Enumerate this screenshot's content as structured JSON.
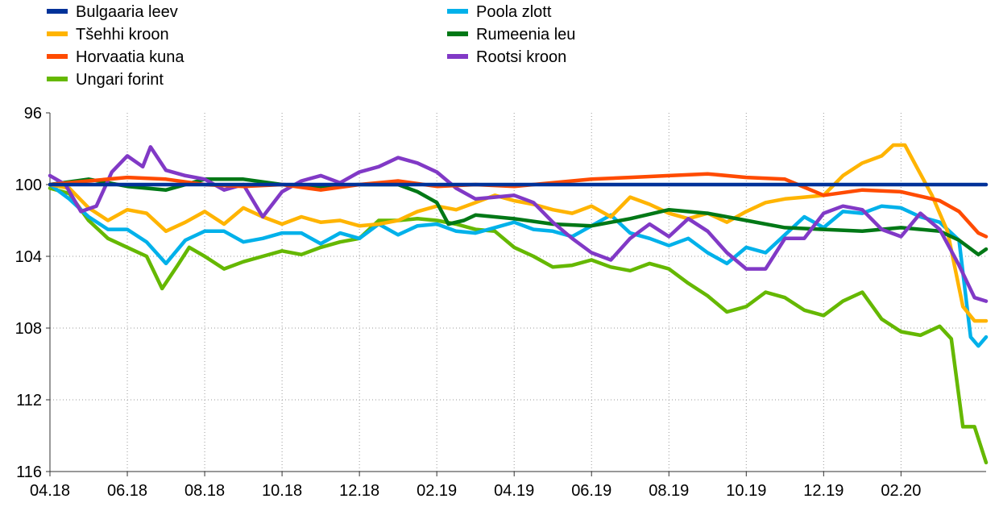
{
  "chart_data": {
    "type": "line",
    "title": "",
    "xlabel": "",
    "ylabel": "",
    "y_inverted": true,
    "ylim": [
      96,
      116
    ],
    "yticks": [
      96,
      100,
      104,
      108,
      112,
      116
    ],
    "xticks": [
      "04.18",
      "06.18",
      "08.18",
      "10.18",
      "12.18",
      "02.19",
      "04.19",
      "06.19",
      "08.19",
      "10.19",
      "12.19",
      "02.20"
    ],
    "x_range_months": [
      0,
      24.2
    ],
    "grid": {
      "x": true,
      "y": true,
      "style": "dotted"
    },
    "legend_position": "top-left",
    "series": [
      {
        "name": "Bulgaaria leev",
        "color": "#003299",
        "points": [
          [
            0,
            100.0
          ],
          [
            24.2,
            100.0
          ]
        ]
      },
      {
        "name": "Tšehhi kroon",
        "color": "#FFB400",
        "points": [
          [
            0,
            100.0
          ],
          [
            0.5,
            100.2
          ],
          [
            1.0,
            101.3
          ],
          [
            1.5,
            102.0
          ],
          [
            2.0,
            101.4
          ],
          [
            2.5,
            101.6
          ],
          [
            3.0,
            102.6
          ],
          [
            3.5,
            102.1
          ],
          [
            4.0,
            101.5
          ],
          [
            4.5,
            102.2
          ],
          [
            5.0,
            101.3
          ],
          [
            5.5,
            101.8
          ],
          [
            6.0,
            102.2
          ],
          [
            6.5,
            101.8
          ],
          [
            7.0,
            102.1
          ],
          [
            7.5,
            102.0
          ],
          [
            8.0,
            102.3
          ],
          [
            8.5,
            102.2
          ],
          [
            9.0,
            102.0
          ],
          [
            9.5,
            101.5
          ],
          [
            10.0,
            101.2
          ],
          [
            10.5,
            101.4
          ],
          [
            11.0,
            101.0
          ],
          [
            11.5,
            100.6
          ],
          [
            12.0,
            100.9
          ],
          [
            12.5,
            101.1
          ],
          [
            13.0,
            101.4
          ],
          [
            13.5,
            101.6
          ],
          [
            14.0,
            101.2
          ],
          [
            14.5,
            101.8
          ],
          [
            15.0,
            100.7
          ],
          [
            15.5,
            101.1
          ],
          [
            16.0,
            101.6
          ],
          [
            16.5,
            101.9
          ],
          [
            17.0,
            101.6
          ],
          [
            17.5,
            102.1
          ],
          [
            18.0,
            101.5
          ],
          [
            18.5,
            101.0
          ],
          [
            19.0,
            100.8
          ],
          [
            19.5,
            100.7
          ],
          [
            20.0,
            100.6
          ],
          [
            20.5,
            99.5
          ],
          [
            21.0,
            98.8
          ],
          [
            21.5,
            98.4
          ],
          [
            21.8,
            97.8
          ],
          [
            22.1,
            97.8
          ],
          [
            22.4,
            99.0
          ],
          [
            22.8,
            100.6
          ],
          [
            23.2,
            102.6
          ],
          [
            23.6,
            106.8
          ],
          [
            23.9,
            107.6
          ],
          [
            24.2,
            107.6
          ]
        ]
      },
      {
        "name": "Horvaatia kuna",
        "color": "#FF4B00",
        "points": [
          [
            0,
            100.0
          ],
          [
            1,
            99.8
          ],
          [
            2,
            99.6
          ],
          [
            3,
            99.7
          ],
          [
            4,
            100.0
          ],
          [
            5,
            100.1
          ],
          [
            6,
            100.0
          ],
          [
            7,
            100.3
          ],
          [
            8,
            100.0
          ],
          [
            9,
            99.8
          ],
          [
            10,
            100.1
          ],
          [
            11,
            100.0
          ],
          [
            12,
            100.1
          ],
          [
            13,
            99.9
          ],
          [
            14,
            99.7
          ],
          [
            15,
            99.6
          ],
          [
            16,
            99.5
          ],
          [
            17,
            99.4
          ],
          [
            18,
            99.6
          ],
          [
            19,
            99.7
          ],
          [
            20,
            100.6
          ],
          [
            21,
            100.3
          ],
          [
            22,
            100.4
          ],
          [
            23,
            100.9
          ],
          [
            23.5,
            101.5
          ],
          [
            24.0,
            102.7
          ],
          [
            24.2,
            102.9
          ]
        ]
      },
      {
        "name": "Ungari forint",
        "color": "#65B800",
        "points": [
          [
            0,
            100.2
          ],
          [
            0.5,
            100.5
          ],
          [
            1.0,
            102.0
          ],
          [
            1.5,
            103.0
          ],
          [
            2.0,
            103.5
          ],
          [
            2.5,
            104.0
          ],
          [
            2.9,
            105.8
          ],
          [
            3.3,
            104.5
          ],
          [
            3.6,
            103.5
          ],
          [
            4.0,
            104.0
          ],
          [
            4.5,
            104.7
          ],
          [
            5.0,
            104.3
          ],
          [
            5.5,
            104.0
          ],
          [
            6.0,
            103.7
          ],
          [
            6.5,
            103.9
          ],
          [
            7.0,
            103.5
          ],
          [
            7.5,
            103.2
          ],
          [
            8.0,
            103.0
          ],
          [
            8.5,
            102.0
          ],
          [
            9.0,
            102.0
          ],
          [
            9.5,
            101.9
          ],
          [
            10.0,
            102.0
          ],
          [
            10.5,
            102.2
          ],
          [
            11.0,
            102.5
          ],
          [
            11.5,
            102.6
          ],
          [
            12.0,
            103.5
          ],
          [
            12.5,
            104.0
          ],
          [
            13.0,
            104.6
          ],
          [
            13.5,
            104.5
          ],
          [
            14.0,
            104.2
          ],
          [
            14.5,
            104.6
          ],
          [
            15.0,
            104.8
          ],
          [
            15.5,
            104.4
          ],
          [
            16.0,
            104.7
          ],
          [
            16.5,
            105.5
          ],
          [
            17.0,
            106.2
          ],
          [
            17.5,
            107.1
          ],
          [
            18.0,
            106.8
          ],
          [
            18.5,
            106.0
          ],
          [
            19.0,
            106.3
          ],
          [
            19.5,
            107.0
          ],
          [
            20.0,
            107.3
          ],
          [
            20.5,
            106.5
          ],
          [
            21.0,
            106.0
          ],
          [
            21.5,
            107.5
          ],
          [
            22.0,
            108.2
          ],
          [
            22.5,
            108.4
          ],
          [
            23.0,
            107.9
          ],
          [
            23.3,
            108.6
          ],
          [
            23.6,
            113.5
          ],
          [
            23.9,
            113.5
          ],
          [
            24.2,
            115.5
          ]
        ]
      },
      {
        "name": "Poola zlott",
        "color": "#00B1EA",
        "points": [
          [
            0,
            100.0
          ],
          [
            0.5,
            100.8
          ],
          [
            1.0,
            101.8
          ],
          [
            1.5,
            102.5
          ],
          [
            2.0,
            102.5
          ],
          [
            2.5,
            103.2
          ],
          [
            3.0,
            104.4
          ],
          [
            3.5,
            103.1
          ],
          [
            4.0,
            102.6
          ],
          [
            4.5,
            102.6
          ],
          [
            5.0,
            103.2
          ],
          [
            5.5,
            103.0
          ],
          [
            6.0,
            102.7
          ],
          [
            6.5,
            102.7
          ],
          [
            7.0,
            103.3
          ],
          [
            7.5,
            102.7
          ],
          [
            8.0,
            103.0
          ],
          [
            8.5,
            102.2
          ],
          [
            9.0,
            102.8
          ],
          [
            9.5,
            102.3
          ],
          [
            10.0,
            102.2
          ],
          [
            10.5,
            102.6
          ],
          [
            11.0,
            102.7
          ],
          [
            11.5,
            102.4
          ],
          [
            12.0,
            102.1
          ],
          [
            12.5,
            102.5
          ],
          [
            13.0,
            102.6
          ],
          [
            13.5,
            102.9
          ],
          [
            14.0,
            102.3
          ],
          [
            14.5,
            101.7
          ],
          [
            15.0,
            102.7
          ],
          [
            15.5,
            103.0
          ],
          [
            16.0,
            103.4
          ],
          [
            16.5,
            103.0
          ],
          [
            17.0,
            103.8
          ],
          [
            17.5,
            104.4
          ],
          [
            18.0,
            103.5
          ],
          [
            18.5,
            103.8
          ],
          [
            19.0,
            102.8
          ],
          [
            19.5,
            101.8
          ],
          [
            20.0,
            102.4
          ],
          [
            20.5,
            101.5
          ],
          [
            21.0,
            101.6
          ],
          [
            21.5,
            101.2
          ],
          [
            22.0,
            101.3
          ],
          [
            22.5,
            101.8
          ],
          [
            23.0,
            102.1
          ],
          [
            23.5,
            103.1
          ],
          [
            23.8,
            108.5
          ],
          [
            24.0,
            109.0
          ],
          [
            24.2,
            108.5
          ]
        ]
      },
      {
        "name": "Rumeenia leu",
        "color": "#007816",
        "points": [
          [
            0,
            100.0
          ],
          [
            1.0,
            99.7
          ],
          [
            2.0,
            100.1
          ],
          [
            3.0,
            100.3
          ],
          [
            4.0,
            99.7
          ],
          [
            5.0,
            99.7
          ],
          [
            6.0,
            100.0
          ],
          [
            7.0,
            100.1
          ],
          [
            8.0,
            100.0
          ],
          [
            9.0,
            100.0
          ],
          [
            9.5,
            100.4
          ],
          [
            10.0,
            101.0
          ],
          [
            10.3,
            102.2
          ],
          [
            10.7,
            102.0
          ],
          [
            11.0,
            101.7
          ],
          [
            12.0,
            101.9
          ],
          [
            13.0,
            102.2
          ],
          [
            14.0,
            102.3
          ],
          [
            15.0,
            101.9
          ],
          [
            16.0,
            101.4
          ],
          [
            17.0,
            101.6
          ],
          [
            18.0,
            102.0
          ],
          [
            19.0,
            102.4
          ],
          [
            20.0,
            102.5
          ],
          [
            21.0,
            102.6
          ],
          [
            22.0,
            102.4
          ],
          [
            23.0,
            102.6
          ],
          [
            23.5,
            103.1
          ],
          [
            24.0,
            103.9
          ],
          [
            24.2,
            103.6
          ]
        ]
      },
      {
        "name": "Rootsi kroon",
        "color": "#8139C6",
        "points": [
          [
            0,
            99.5
          ],
          [
            0.4,
            100.0
          ],
          [
            0.8,
            101.5
          ],
          [
            1.2,
            101.2
          ],
          [
            1.6,
            99.3
          ],
          [
            2.0,
            98.4
          ],
          [
            2.4,
            99.0
          ],
          [
            2.6,
            97.9
          ],
          [
            3.0,
            99.2
          ],
          [
            3.5,
            99.5
          ],
          [
            4.0,
            99.7
          ],
          [
            4.5,
            100.3
          ],
          [
            5.0,
            100.0
          ],
          [
            5.5,
            101.8
          ],
          [
            6.0,
            100.4
          ],
          [
            6.5,
            99.8
          ],
          [
            7.0,
            99.5
          ],
          [
            7.5,
            99.9
          ],
          [
            8.0,
            99.3
          ],
          [
            8.5,
            99.0
          ],
          [
            9.0,
            98.5
          ],
          [
            9.5,
            98.8
          ],
          [
            10.0,
            99.3
          ],
          [
            10.5,
            100.2
          ],
          [
            11.0,
            100.8
          ],
          [
            11.5,
            100.7
          ],
          [
            12.0,
            100.6
          ],
          [
            12.5,
            101.0
          ],
          [
            13.0,
            102.1
          ],
          [
            13.5,
            103.0
          ],
          [
            14.0,
            103.8
          ],
          [
            14.5,
            104.2
          ],
          [
            15.0,
            103.0
          ],
          [
            15.5,
            102.2
          ],
          [
            16.0,
            102.9
          ],
          [
            16.5,
            101.9
          ],
          [
            17.0,
            102.6
          ],
          [
            17.5,
            103.8
          ],
          [
            18.0,
            104.7
          ],
          [
            18.5,
            104.7
          ],
          [
            19.0,
            103.0
          ],
          [
            19.5,
            103.0
          ],
          [
            20.0,
            101.6
          ],
          [
            20.5,
            101.2
          ],
          [
            21.0,
            101.4
          ],
          [
            21.5,
            102.5
          ],
          [
            22.0,
            102.9
          ],
          [
            22.5,
            101.6
          ],
          [
            23.0,
            102.5
          ],
          [
            23.5,
            104.5
          ],
          [
            23.9,
            106.3
          ],
          [
            24.2,
            106.5
          ]
        ]
      }
    ]
  }
}
